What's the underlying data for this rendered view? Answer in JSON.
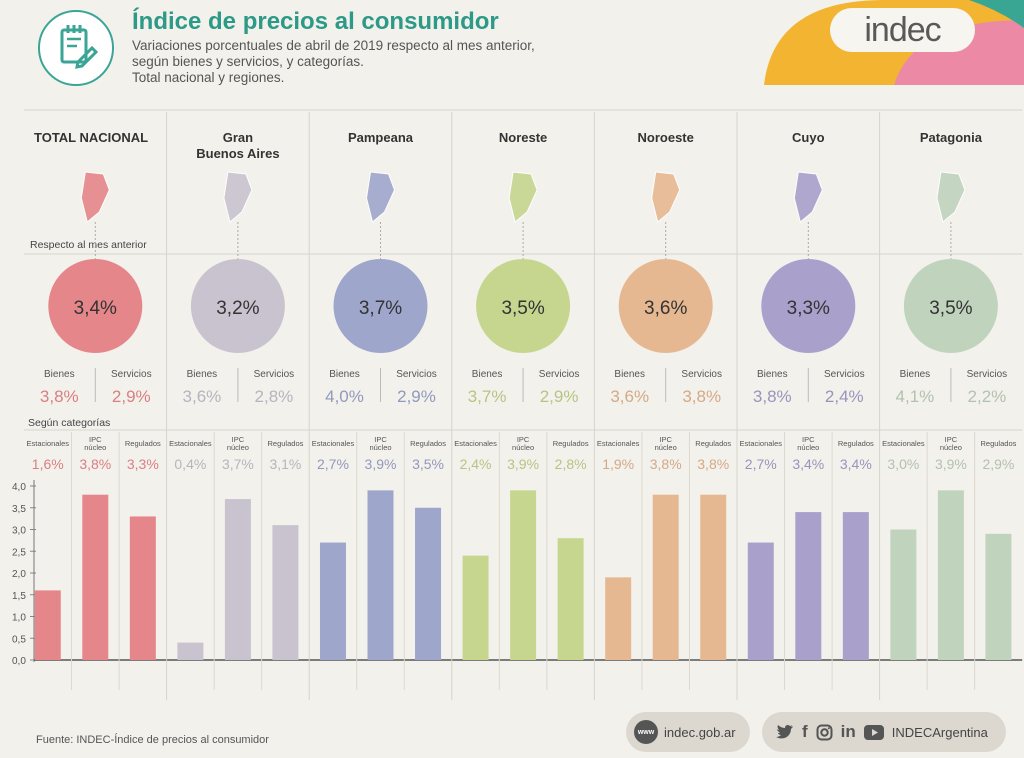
{
  "header": {
    "title": "Índice de precios al consumidor",
    "subtitle_lines": [
      "Variaciones porcentuales de abril de 2019 respecto al mes anterior,",
      "según bienes y servicios, y categorías.",
      "Total nacional y regiones."
    ],
    "brand": "indec"
  },
  "labels": {
    "respecto": "Respecto al mes anterior",
    "segun": "Según categorías",
    "bienes": "Bienes",
    "servicios": "Servicios",
    "cat_estacionales": "Estacionales",
    "cat_ipc_line1": "IPC",
    "cat_ipc_line2": "núcleo",
    "cat_regulados": "Regulados"
  },
  "colors": {
    "accent_title": "#2d9987",
    "regions": [
      "#e5868a",
      "#c8c3cf",
      "#9ea6cc",
      "#c6d68e",
      "#e6b892",
      "#a9a0cc",
      "#c0d3bd"
    ]
  },
  "chart_data": {
    "type": "bar",
    "unit": "%",
    "ylim": [
      0,
      4
    ],
    "yticks": [
      "4,0",
      "3,5",
      "3,0",
      "2,5",
      "2,0",
      "1,5",
      "1,0",
      "0,5",
      "0,0"
    ],
    "categories": [
      "Estacionales",
      "IPC núcleo",
      "Regulados"
    ],
    "regions": [
      {
        "name_lines": [
          "TOTAL NACIONAL"
        ],
        "total": 3.4,
        "total_label": "3,4%",
        "bienes": "3,8%",
        "servicios": "2,9%",
        "values": [
          1.6,
          3.8,
          3.3
        ],
        "value_labels": [
          "1,6%",
          "3,8%",
          "3,3%"
        ]
      },
      {
        "name_lines": [
          "Gran",
          "Buenos Aires"
        ],
        "total": 3.2,
        "total_label": "3,2%",
        "bienes": "3,6%",
        "servicios": "2,8%",
        "values": [
          0.4,
          3.7,
          3.1
        ],
        "value_labels": [
          "0,4%",
          "3,7%",
          "3,1%"
        ]
      },
      {
        "name_lines": [
          "Pampeana"
        ],
        "total": 3.7,
        "total_label": "3,7%",
        "bienes": "4,0%",
        "servicios": "2,9%",
        "values": [
          2.7,
          3.9,
          3.5
        ],
        "value_labels": [
          "2,7%",
          "3,9%",
          "3,5%"
        ]
      },
      {
        "name_lines": [
          "Noreste"
        ],
        "total": 3.5,
        "total_label": "3,5%",
        "bienes": "3,7%",
        "servicios": "2,9%",
        "values": [
          2.4,
          3.9,
          2.8
        ],
        "value_labels": [
          "2,4%",
          "3,9%",
          "2,8%"
        ]
      },
      {
        "name_lines": [
          "Noroeste"
        ],
        "total": 3.6,
        "total_label": "3,6%",
        "bienes": "3,6%",
        "servicios": "3,8%",
        "values": [
          1.9,
          3.8,
          3.8
        ],
        "value_labels": [
          "1,9%",
          "3,8%",
          "3,8%"
        ]
      },
      {
        "name_lines": [
          "Cuyo"
        ],
        "total": 3.3,
        "total_label": "3,3%",
        "bienes": "3,8%",
        "servicios": "2,4%",
        "values": [
          2.7,
          3.4,
          3.4
        ],
        "value_labels": [
          "2,7%",
          "3,4%",
          "3,4%"
        ]
      },
      {
        "name_lines": [
          "Patagonia"
        ],
        "total": 3.5,
        "total_label": "3,5%",
        "bienes": "4,1%",
        "servicios": "2,2%",
        "values": [
          3.0,
          3.9,
          2.9
        ],
        "value_labels": [
          "3,0%",
          "3,9%",
          "2,9%"
        ]
      }
    ]
  },
  "footer": {
    "source": "Fuente: INDEC-Índice de precios al consumidor",
    "web_badge": "www",
    "website": "indec.gob.ar",
    "social_icons": [
      "twitter-icon",
      "facebook-icon",
      "instagram-icon",
      "linkedin-icon",
      "youtube-icon"
    ],
    "social_handle": "INDECArgentina"
  }
}
